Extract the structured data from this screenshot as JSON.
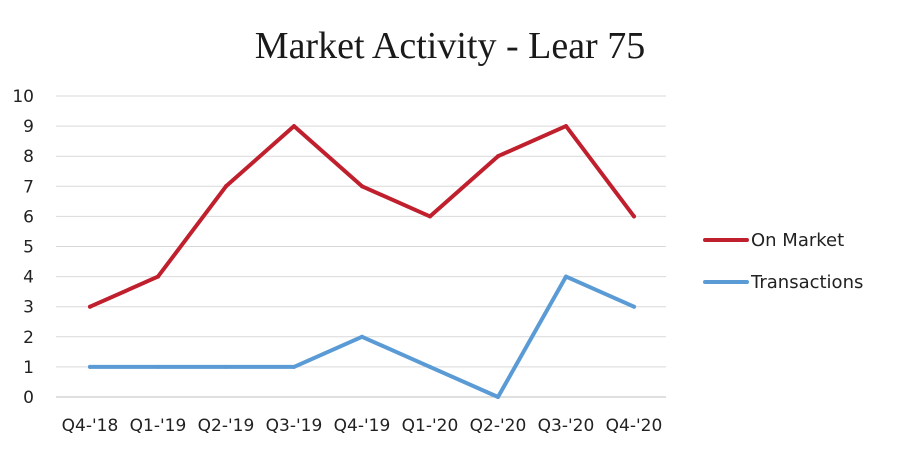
{
  "chart_data": {
    "type": "line",
    "title": "Market Activity - Lear 75",
    "xlabel": "",
    "ylabel": "",
    "categories": [
      "Q4-'18",
      "Q1-'19",
      "Q2-'19",
      "Q3-'19",
      "Q4-'19",
      "Q1-'20",
      "Q2-'20",
      "Q3-'20",
      "Q4-'20"
    ],
    "ylim": [
      0,
      10
    ],
    "yticks": [
      "0",
      "1",
      "2",
      "3",
      "4",
      "5",
      "6",
      "7",
      "8",
      "9",
      "10"
    ],
    "grid": true,
    "legend_position": "right",
    "series": [
      {
        "name": "On Market",
        "color": "#C0202E",
        "values": [
          3,
          4,
          7,
          9,
          7,
          6,
          8,
          9,
          6
        ]
      },
      {
        "name": "Transactions",
        "color": "#5B9BD5",
        "values": [
          1,
          1,
          1,
          1,
          2,
          1,
          0,
          4,
          3
        ]
      }
    ]
  }
}
